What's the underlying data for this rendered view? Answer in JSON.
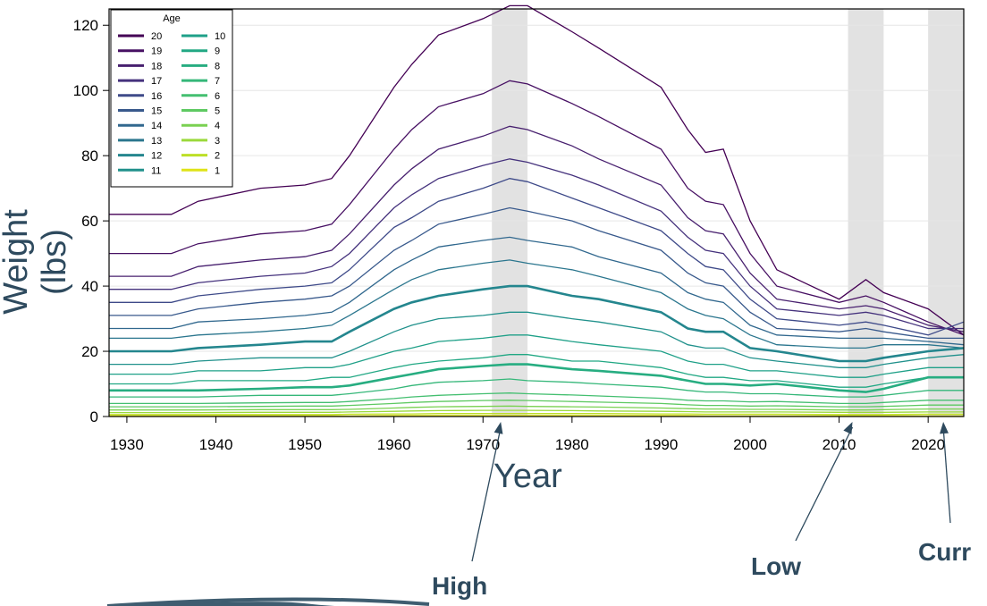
{
  "chart_data": {
    "type": "line",
    "xlabel": "Year",
    "ylabel": "Weight (lbs)",
    "xlim": [
      1928,
      2024
    ],
    "ylim": [
      0,
      125
    ],
    "xticks": [
      1930,
      1940,
      1950,
      1960,
      1970,
      1980,
      1990,
      2000,
      2010,
      2020
    ],
    "yticks": [
      0,
      20,
      40,
      60,
      80,
      100,
      120
    ],
    "grid": "horizontal",
    "legend": {
      "title": "Age",
      "placement": "top-left"
    },
    "highlight_periods": [
      [
        1971,
        1975
      ],
      [
        2011,
        2015
      ],
      [
        2020,
        2024
      ]
    ],
    "annotations": [
      "High",
      "Low",
      "Curr"
    ],
    "x": [
      1928,
      1935,
      1938,
      1945,
      1950,
      1953,
      1955,
      1960,
      1962,
      1965,
      1970,
      1973,
      1975,
      1980,
      1983,
      1990,
      1993,
      1995,
      1997,
      2000,
      2003,
      2010,
      2013,
      2015,
      2020,
      2024
    ],
    "series": [
      {
        "name": "20",
        "color": "#440154",
        "values": [
          62,
          62,
          66,
          70,
          71,
          73,
          80,
          101,
          108,
          117,
          122,
          126,
          126,
          118,
          113,
          101,
          88,
          81,
          82,
          60,
          45,
          36,
          42,
          38,
          33,
          25
        ]
      },
      {
        "name": "19",
        "color": "#471063",
        "values": [
          50,
          50,
          53,
          56,
          57,
          59,
          65,
          82,
          88,
          95,
          99,
          103,
          102,
          96,
          92,
          82,
          70,
          66,
          65,
          50,
          40,
          35,
          37,
          35,
          29,
          25
        ]
      },
      {
        "name": "18",
        "color": "#48206f",
        "values": [
          43,
          43,
          46,
          48,
          49,
          51,
          56,
          71,
          76,
          82,
          86,
          89,
          88,
          83,
          79,
          71,
          61,
          57,
          56,
          44,
          36,
          33,
          34,
          33,
          28,
          26
        ]
      },
      {
        "name": "17",
        "color": "#45327d",
        "values": [
          39,
          39,
          41,
          43,
          44,
          46,
          50,
          64,
          68,
          73,
          77,
          79,
          78,
          74,
          71,
          63,
          55,
          51,
          50,
          40,
          33,
          31,
          32,
          31,
          27,
          27
        ]
      },
      {
        "name": "16",
        "color": "#3e4a89",
        "values": [
          35,
          35,
          37,
          39,
          40,
          41,
          45,
          58,
          61,
          66,
          70,
          73,
          72,
          67,
          64,
          57,
          50,
          46,
          45,
          36,
          30,
          28,
          29,
          28,
          25,
          29
        ]
      },
      {
        "name": "15",
        "color": "#38598c",
        "values": [
          31,
          31,
          33,
          35,
          36,
          37,
          40,
          51,
          54,
          59,
          62,
          64,
          63,
          60,
          57,
          51,
          44,
          41,
          40,
          32,
          27,
          26,
          27,
          26,
          24,
          24
        ]
      },
      {
        "name": "14",
        "color": "#31688e",
        "values": [
          27,
          27,
          29,
          30,
          31,
          32,
          35,
          45,
          48,
          52,
          54,
          55,
          54,
          52,
          49,
          44,
          38,
          36,
          35,
          28,
          25,
          24,
          24,
          24,
          23,
          22
        ]
      },
      {
        "name": "13",
        "color": "#2b768e",
        "values": [
          24,
          24,
          25,
          26,
          27,
          28,
          31,
          39,
          42,
          45,
          47,
          48,
          47,
          45,
          43,
          38,
          33,
          31,
          30,
          25,
          22,
          21,
          21,
          22,
          22,
          21
        ]
      },
      {
        "name": "12",
        "color": "#24868e",
        "values": [
          20,
          20,
          21,
          22,
          23,
          23,
          26,
          33,
          35,
          37,
          39,
          40,
          40,
          37,
          36,
          32,
          27,
          26,
          26,
          21,
          20,
          17,
          17,
          18,
          20,
          21
        ]
      },
      {
        "name": "11",
        "color": "#21918c",
        "values": [
          16,
          16,
          17,
          18,
          18,
          18,
          20,
          26,
          28,
          30,
          31,
          32,
          32,
          30,
          29,
          26,
          22,
          21,
          21,
          18,
          17,
          15,
          15,
          16,
          18,
          19
        ]
      },
      {
        "name": "10",
        "color": "#1fa088",
        "values": [
          13,
          13,
          14,
          14,
          15,
          15,
          16,
          20,
          21,
          23,
          24,
          25,
          25,
          23,
          22,
          20,
          17,
          16,
          16,
          14,
          14,
          12,
          12,
          13,
          15,
          15
        ]
      },
      {
        "name": "9",
        "color": "#22a884",
        "values": [
          10,
          10,
          11,
          11,
          11,
          12,
          12,
          15,
          16,
          17,
          18,
          19,
          19,
          17,
          17,
          15,
          13,
          12,
          12,
          11,
          11,
          9,
          9,
          10,
          12,
          12
        ]
      },
      {
        "name": "8",
        "color": "#27ad81",
        "values": [
          8,
          8,
          8,
          8.5,
          9,
          9,
          9.5,
          12,
          13,
          14.5,
          15.5,
          16,
          16,
          14.5,
          14,
          12.5,
          11,
          10,
          10,
          9.5,
          10,
          8,
          7.5,
          8.5,
          12,
          12
        ]
      },
      {
        "name": "7",
        "color": "#35b779",
        "values": [
          6,
          6,
          6,
          6.5,
          6.5,
          6.5,
          7,
          8.5,
          9.5,
          10.5,
          11,
          11.5,
          11,
          10.5,
          10,
          9,
          8,
          7.5,
          7.5,
          7,
          7,
          6,
          6,
          6.5,
          8,
          8
        ]
      },
      {
        "name": "6",
        "color": "#44bf70",
        "values": [
          4,
          4,
          4,
          4.2,
          4.3,
          4.3,
          4.6,
          5.5,
          6,
          6.5,
          7,
          7.2,
          7,
          6.6,
          6.3,
          5.6,
          5,
          4.8,
          4.8,
          4.5,
          4.6,
          4,
          4,
          4.3,
          5,
          5
        ]
      },
      {
        "name": "5",
        "color": "#5ec962",
        "values": [
          3,
          3,
          3,
          3.1,
          3.2,
          3.2,
          3.4,
          4,
          4.3,
          4.6,
          4.9,
          5,
          4.9,
          4.6,
          4.4,
          4,
          3.6,
          3.4,
          3.4,
          3.2,
          3.3,
          3,
          3,
          3.1,
          3.5,
          3.5
        ]
      },
      {
        "name": "4",
        "color": "#7ad151",
        "values": [
          2,
          2,
          2,
          2.1,
          2.1,
          2.1,
          2.2,
          2.6,
          2.8,
          3,
          3.1,
          3.2,
          3.1,
          3,
          2.9,
          2.6,
          2.4,
          2.3,
          2.3,
          2.2,
          2.2,
          2,
          2,
          2.1,
          2.3,
          2.3
        ]
      },
      {
        "name": "3",
        "color": "#9bd93c",
        "values": [
          1.2,
          1.2,
          1.2,
          1.3,
          1.3,
          1.3,
          1.4,
          1.6,
          1.7,
          1.8,
          1.9,
          1.9,
          1.9,
          1.8,
          1.7,
          1.6,
          1.5,
          1.4,
          1.4,
          1.4,
          1.4,
          1.3,
          1.3,
          1.3,
          1.4,
          1.4
        ]
      },
      {
        "name": "2",
        "color": "#bddf26",
        "values": [
          0.6,
          0.6,
          0.6,
          0.6,
          0.6,
          0.6,
          0.7,
          0.8,
          0.8,
          0.9,
          0.9,
          0.9,
          0.9,
          0.9,
          0.9,
          0.8,
          0.8,
          0.7,
          0.7,
          0.7,
          0.7,
          0.6,
          0.6,
          0.6,
          0.7,
          0.7
        ]
      },
      {
        "name": "1",
        "color": "#dfe318",
        "values": [
          0.2,
          0.2,
          0.2,
          0.2,
          0.2,
          0.2,
          0.2,
          0.3,
          0.3,
          0.3,
          0.3,
          0.3,
          0.3,
          0.3,
          0.3,
          0.3,
          0.3,
          0.2,
          0.2,
          0.2,
          0.2,
          0.2,
          0.2,
          0.2,
          0.2,
          0.2
        ]
      }
    ]
  }
}
